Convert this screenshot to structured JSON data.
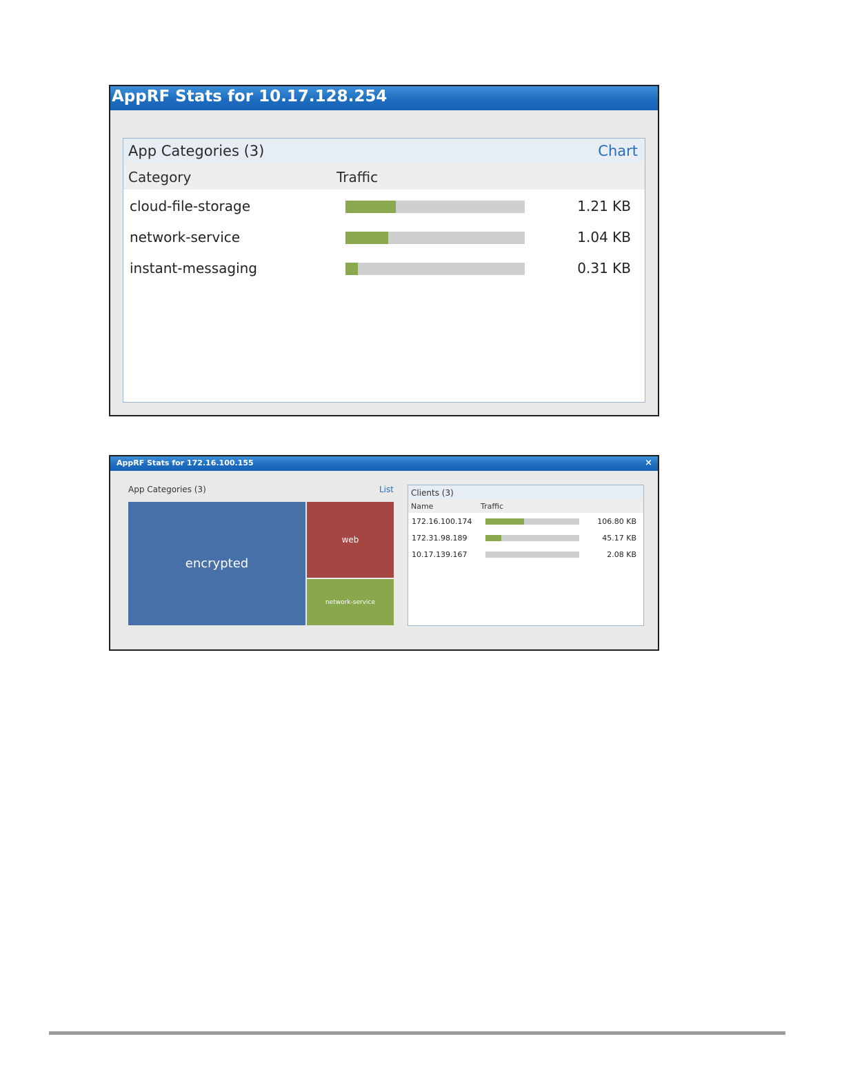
{
  "window1": {
    "title": "AppRF Stats for 10.17.128.254",
    "panel_title": "App Categories (3)",
    "view_link": "Chart",
    "columns": {
      "category": "Category",
      "traffic": "Traffic"
    },
    "rows": [
      {
        "name": "cloud-file-storage",
        "value": "1.21 KB",
        "bar_fraction": 0.28
      },
      {
        "name": "network-service",
        "value": "1.04 KB",
        "bar_fraction": 0.24
      },
      {
        "name": "instant-messaging",
        "value": "0.31 KB",
        "bar_fraction": 0.07
      }
    ]
  },
  "window2": {
    "title": "AppRF Stats for 172.16.100.155",
    "close_label": "×",
    "categories_title": "App Categories (3)",
    "view_link": "List",
    "treemap": [
      {
        "label": "encrypted",
        "color": "#4670a7"
      },
      {
        "label": "web",
        "color": "#a54643"
      },
      {
        "label": "network-service",
        "color": "#89a74c"
      }
    ],
    "clients": {
      "title": "Clients (3)",
      "columns": {
        "name": "Name",
        "traffic": "Traffic"
      },
      "rows": [
        {
          "name": "172.16.100.174",
          "value": "106.80 KB",
          "bar_fraction": 0.41
        },
        {
          "name": "172.31.98.189",
          "value": "45.17 KB",
          "bar_fraction": 0.17
        },
        {
          "name": "10.17.139.167",
          "value": "2.08 KB",
          "bar_fraction": 0.0
        }
      ]
    }
  },
  "colors": {
    "title_bar": "#1e6dc0",
    "bar_fill": "#8aa84e",
    "bar_track": "#cfcfcf",
    "link": "#2a6ebb"
  }
}
